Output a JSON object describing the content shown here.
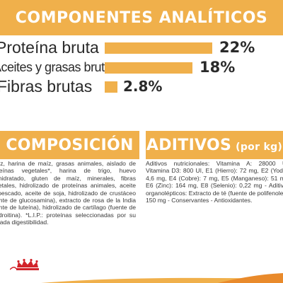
{
  "header": {
    "title": "COMPONENTES ANALÍTICOS"
  },
  "nutrients": [
    {
      "label": "Proteína bruta",
      "value_text": "22%",
      "value": 22
    },
    {
      "label": "Aceites y grasas brutos",
      "value_text": "18%",
      "value": 18
    },
    {
      "label": "Fibras brutas",
      "value_text": "2.8%",
      "value": 2.8
    }
  ],
  "composition": {
    "title": "COMPOSICIÓN",
    "text": "Arroz, harina de maíz, grasas animales, aislado de proteínas vegetales*, harina de trigo, huevo deshidratado, gluten de maíz, minerales, fibras vegetales, hidrolizado de proteínas animales, aceite de pescado, aceite de soja, hidrolizado de crustáceo (fuente de glucosamina), extracto de rosa de la India (fuente de luteína), hidrolizado de cartílago (fuente de condroitina). *L.I.P.: proteínas seleccionadas por su elevada digestibilidad."
  },
  "additives": {
    "title": "ADITIVOS",
    "unit": "(por kg)",
    "text": "Aditivos nutricionales: Vitamina A: 28000 UI, Vitamina D3: 800 UI, E1 (Hierro): 72 mg, E2 (Yodo): 4,6 mg, E4 (Cobre): 7 mg, E5 (Manganeso): 51 mg, E6 (Zinc): 164 mg, E8 (Selenio): 0,22 mg - Aditivos organolépticos: Extracto de té (fuente de polifenoles): 150 mg - Conservantes - Antioxidantes."
  },
  "colors": {
    "accent": "#f0b04b",
    "brand_red": "#d2232a",
    "text": "#2a2a2a"
  },
  "icons": {
    "logo": "royal-canin-crown-icon"
  }
}
